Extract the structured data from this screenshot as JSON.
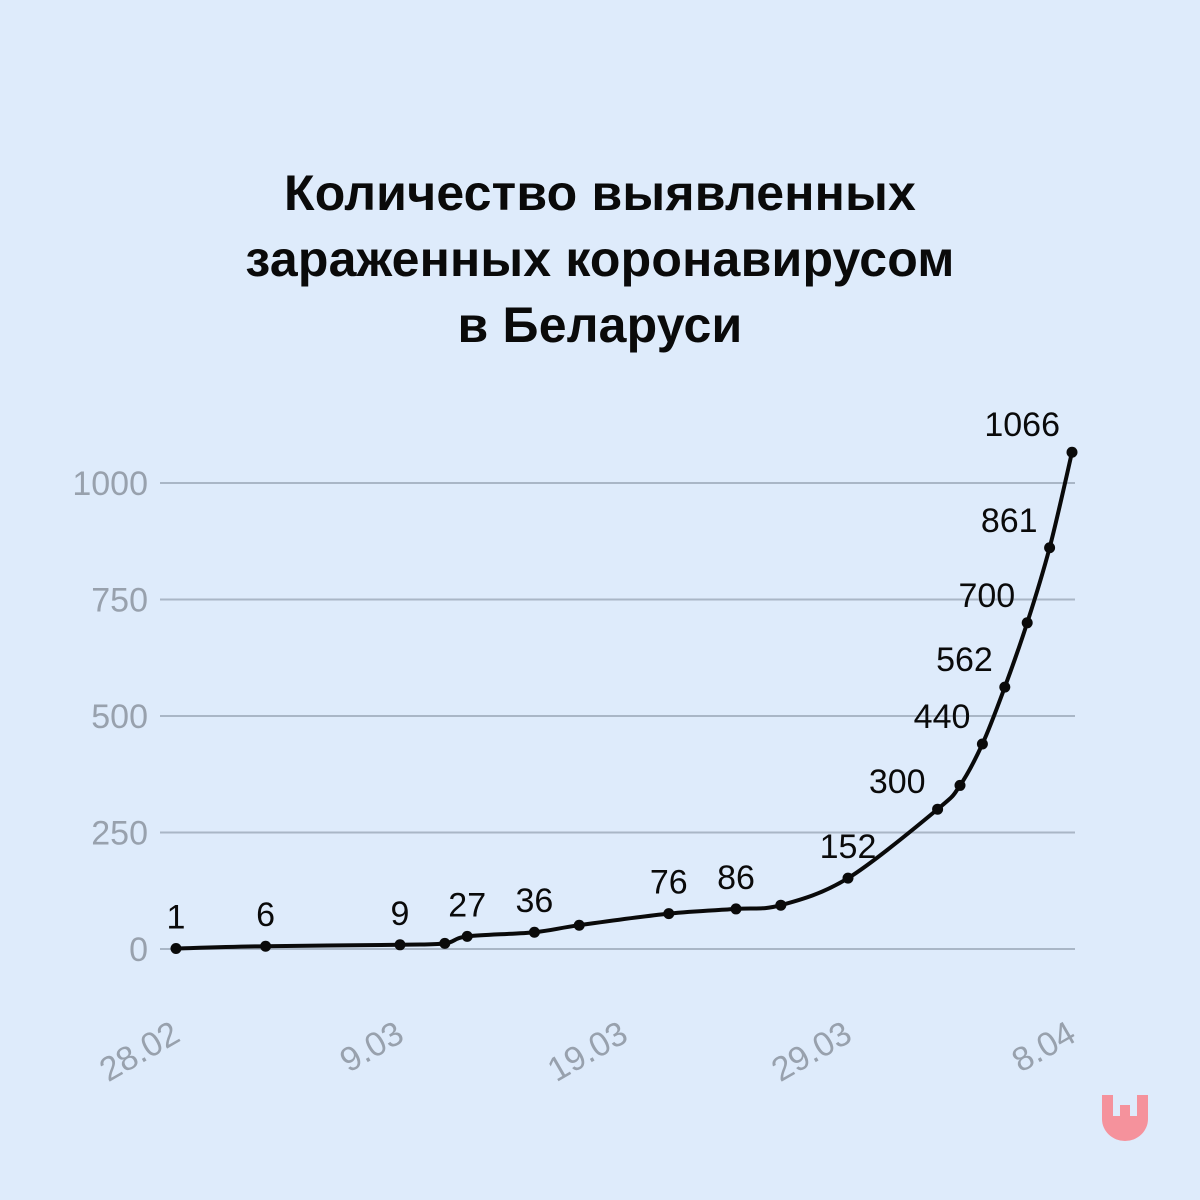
{
  "title": {
    "line1": "Количество выявленных",
    "line2": "зараженных коронавирусом",
    "line3": "в Беларуси"
  },
  "chart_data": {
    "type": "line",
    "title": "Количество выявленных зараженных коронавирусом в Беларуси",
    "xlabel": "",
    "ylabel": "",
    "ylim": [
      0,
      1000
    ],
    "yticks": [
      0,
      250,
      500,
      750,
      1000
    ],
    "xticks": [
      "28.02",
      "9.03",
      "19.03",
      "29.03",
      "8.04"
    ],
    "grid": true,
    "series": [
      {
        "points": [
          {
            "x": "28.02",
            "y": 1,
            "label": "1"
          },
          {
            "x": "3.03",
            "y": 6,
            "label": "6"
          },
          {
            "x": "9.03",
            "y": 9,
            "label": "9"
          },
          {
            "x": "11.03",
            "y": 12
          },
          {
            "x": "12.03",
            "y": 27,
            "label": "27"
          },
          {
            "x": "15.03",
            "y": 36,
            "label": "36"
          },
          {
            "x": "17.03",
            "y": 51
          },
          {
            "x": "21.03",
            "y": 76,
            "label": "76"
          },
          {
            "x": "24.03",
            "y": 86,
            "label": "86"
          },
          {
            "x": "26.03",
            "y": 94
          },
          {
            "x": "29.03",
            "y": 152,
            "label": "152"
          },
          {
            "x": "2.04",
            "y": 300,
            "label": "300"
          },
          {
            "x": "3.04",
            "y": 351
          },
          {
            "x": "4.04",
            "y": 440,
            "label": "440"
          },
          {
            "x": "5.04",
            "y": 562,
            "label": "562"
          },
          {
            "x": "6.04",
            "y": 700,
            "label": "700"
          },
          {
            "x": "7.04",
            "y": 861,
            "label": "861"
          },
          {
            "x": "8.04",
            "y": 1066,
            "label": "1066"
          }
        ]
      }
    ]
  },
  "colors": {
    "background": "#deebfb",
    "line": "#0a0a0a",
    "grid": "#a9b6c6",
    "axis_text": "#98a1ad",
    "logo": "#f5929c"
  },
  "logo": {
    "icon": "down-arrow-shield-logo"
  }
}
